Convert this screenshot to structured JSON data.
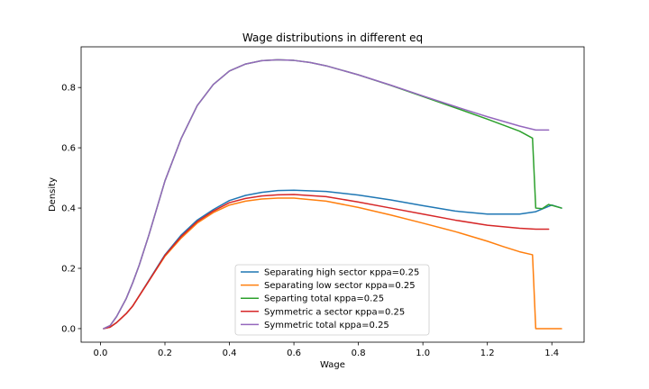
{
  "chart_data": {
    "type": "line",
    "title": "Wage distributions in different eq",
    "xlabel": "Wage",
    "ylabel": "Density",
    "xlim": [
      -0.06,
      1.5
    ],
    "ylim": [
      -0.045,
      0.935
    ],
    "xticks": [
      0.0,
      0.2,
      0.4,
      0.6,
      0.8,
      1.0,
      1.2,
      1.4
    ],
    "xtick_labels": [
      "0.0",
      "0.2",
      "0.4",
      "0.6",
      "0.8",
      "1.0",
      "1.2",
      "1.4"
    ],
    "yticks": [
      0.0,
      0.2,
      0.4,
      0.6,
      0.8
    ],
    "ytick_labels": [
      "0.0",
      "0.2",
      "0.4",
      "0.6",
      "0.8"
    ],
    "grid": false,
    "legend_position": "bottom-center",
    "series": [
      {
        "name": "Separating high sector κppa=0.25",
        "color": "#1f77b4",
        "x": [
          0.01,
          0.03,
          0.05,
          0.08,
          0.1,
          0.15,
          0.2,
          0.25,
          0.3,
          0.35,
          0.4,
          0.45,
          0.5,
          0.55,
          0.6,
          0.7,
          0.8,
          0.9,
          1.0,
          1.1,
          1.2,
          1.3,
          1.35,
          1.4,
          1.43
        ],
        "y": [
          0.0,
          0.005,
          0.02,
          0.05,
          0.075,
          0.16,
          0.245,
          0.31,
          0.36,
          0.395,
          0.425,
          0.442,
          0.452,
          0.458,
          0.459,
          0.455,
          0.443,
          0.427,
          0.408,
          0.39,
          0.38,
          0.38,
          0.388,
          0.41,
          0.4
        ]
      },
      {
        "name": "Separating low sector κppa=0.25",
        "color": "#ff7f0e",
        "x": [
          0.01,
          0.03,
          0.05,
          0.08,
          0.1,
          0.15,
          0.2,
          0.25,
          0.3,
          0.35,
          0.4,
          0.45,
          0.5,
          0.55,
          0.6,
          0.7,
          0.8,
          0.9,
          1.0,
          1.1,
          1.2,
          1.25,
          1.3,
          1.34,
          1.35,
          1.4,
          1.43
        ],
        "y": [
          0.0,
          0.005,
          0.02,
          0.05,
          0.075,
          0.158,
          0.24,
          0.3,
          0.35,
          0.385,
          0.41,
          0.423,
          0.43,
          0.433,
          0.433,
          0.423,
          0.402,
          0.377,
          0.35,
          0.322,
          0.29,
          0.272,
          0.255,
          0.245,
          0.0,
          0.0,
          0.0
        ]
      },
      {
        "name": "Separting total κppa=0.25",
        "color": "#2ca02c",
        "x": [
          0.01,
          0.03,
          0.05,
          0.08,
          0.1,
          0.12,
          0.15,
          0.2,
          0.25,
          0.3,
          0.35,
          0.4,
          0.45,
          0.5,
          0.55,
          0.6,
          0.65,
          0.7,
          0.8,
          0.9,
          1.0,
          1.1,
          1.2,
          1.3,
          1.34,
          1.35,
          1.37,
          1.39,
          1.43
        ],
        "y": [
          0.0,
          0.01,
          0.04,
          0.1,
          0.152,
          0.21,
          0.31,
          0.49,
          0.63,
          0.74,
          0.81,
          0.855,
          0.878,
          0.889,
          0.892,
          0.89,
          0.883,
          0.872,
          0.842,
          0.807,
          0.77,
          0.733,
          0.695,
          0.655,
          0.632,
          0.4,
          0.398,
          0.412,
          0.4
        ]
      },
      {
        "name": "Symmetric a sector κppa=0.25",
        "color": "#d62728",
        "x": [
          0.01,
          0.03,
          0.05,
          0.08,
          0.1,
          0.15,
          0.2,
          0.25,
          0.3,
          0.35,
          0.4,
          0.45,
          0.5,
          0.55,
          0.6,
          0.7,
          0.8,
          0.9,
          1.0,
          1.1,
          1.2,
          1.3,
          1.35,
          1.39
        ],
        "y": [
          0.0,
          0.005,
          0.02,
          0.05,
          0.075,
          0.158,
          0.243,
          0.305,
          0.355,
          0.39,
          0.418,
          0.432,
          0.44,
          0.444,
          0.445,
          0.438,
          0.42,
          0.4,
          0.38,
          0.36,
          0.343,
          0.333,
          0.33,
          0.33
        ]
      },
      {
        "name": "Symmetric total κppa=0.25",
        "color": "#9467bd",
        "x": [
          0.01,
          0.03,
          0.05,
          0.08,
          0.1,
          0.12,
          0.15,
          0.2,
          0.25,
          0.3,
          0.35,
          0.4,
          0.45,
          0.5,
          0.55,
          0.6,
          0.65,
          0.7,
          0.8,
          0.9,
          1.0,
          1.1,
          1.2,
          1.3,
          1.35,
          1.39
        ],
        "y": [
          0.0,
          0.01,
          0.04,
          0.1,
          0.152,
          0.21,
          0.31,
          0.49,
          0.63,
          0.74,
          0.81,
          0.855,
          0.878,
          0.889,
          0.892,
          0.89,
          0.883,
          0.872,
          0.842,
          0.808,
          0.772,
          0.737,
          0.703,
          0.672,
          0.659,
          0.659
        ]
      }
    ]
  }
}
